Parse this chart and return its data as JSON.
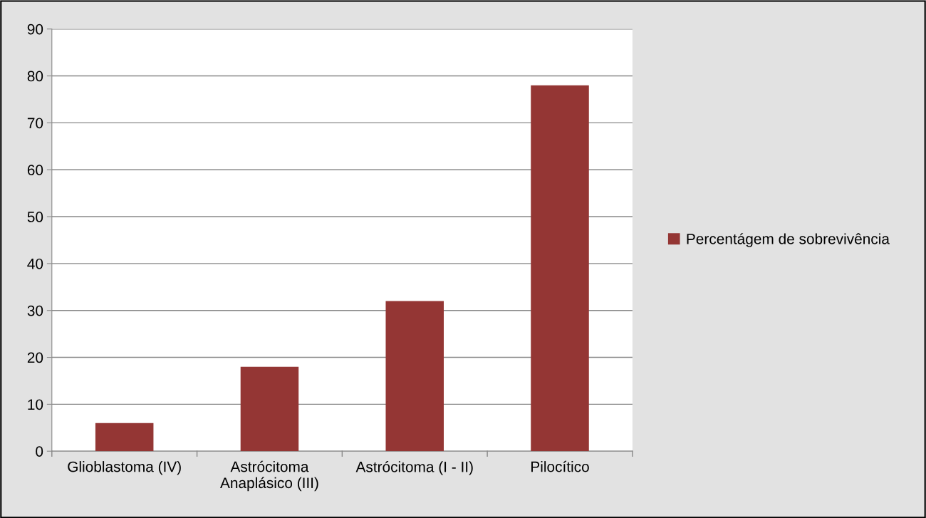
{
  "chart_data": {
    "type": "bar",
    "categories": [
      "Glioblastoma (IV)",
      "Astrócitoma\nAnaplásico (III)",
      "Astrócitoma (I - II)",
      "Pilocítico"
    ],
    "series": [
      {
        "name": "Percentágem de sobrevivência",
        "color": "#943634",
        "values": [
          6,
          18,
          32,
          78
        ]
      }
    ],
    "ylim": [
      0,
      90
    ],
    "yticks": [
      0,
      10,
      20,
      30,
      40,
      50,
      60,
      70,
      80,
      90
    ],
    "grid": "y",
    "legend": "right"
  }
}
